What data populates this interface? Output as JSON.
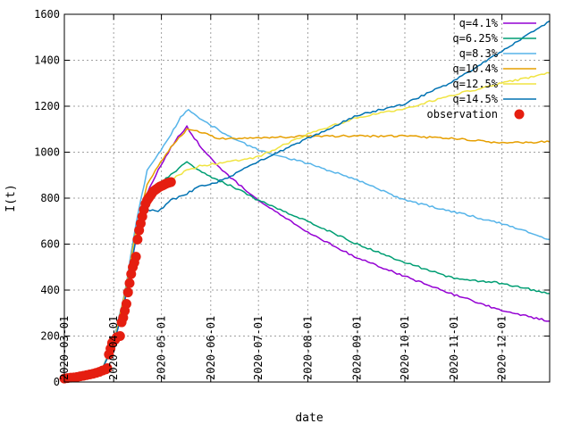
{
  "chart_data": {
    "type": "line",
    "xlabel": "date",
    "ylabel": "I(t)",
    "ylim": [
      0,
      1600
    ],
    "xlim": [
      "2020-03-01",
      "2020-12-31"
    ],
    "grid": true,
    "legend_position": "top-right",
    "y_ticks": [
      "0",
      "200",
      "400",
      "600",
      "800",
      "1000",
      "1200",
      "1400",
      "1600"
    ],
    "x_ticks": [
      "2020-03-01",
      "2020-04-01",
      "2020-05-01",
      "2020-06-01",
      "2020-07-01",
      "2020-08-01",
      "2020-09-01",
      "2020-10-01",
      "2020-11-01",
      "2020-12-01"
    ],
    "series": [
      {
        "name": "q=4.1%",
        "color": "#9400d3",
        "points": [
          [
            "2020-03-01",
            15
          ],
          [
            "2020-03-15",
            25
          ],
          [
            "2020-03-25",
            60
          ],
          [
            "2020-04-01",
            160
          ],
          [
            "2020-04-08",
            350
          ],
          [
            "2020-04-15",
            620
          ],
          [
            "2020-04-22",
            820
          ],
          [
            "2020-04-29",
            920
          ],
          [
            "2020-05-07",
            1020
          ],
          [
            "2020-05-13",
            1080
          ],
          [
            "2020-05-17",
            1110
          ],
          [
            "2020-05-25",
            1030
          ],
          [
            "2020-06-05",
            940
          ],
          [
            "2020-06-15",
            880
          ],
          [
            "2020-07-01",
            790
          ],
          [
            "2020-08-01",
            650
          ],
          [
            "2020-09-01",
            540
          ],
          [
            "2020-10-01",
            460
          ],
          [
            "2020-11-01",
            380
          ],
          [
            "2020-12-01",
            310
          ],
          [
            "2020-12-31",
            265
          ]
        ]
      },
      {
        "name": "q=6.25%",
        "color": "#009e73",
        "points": [
          [
            "2020-03-01",
            15
          ],
          [
            "2020-03-15",
            25
          ],
          [
            "2020-03-25",
            60
          ],
          [
            "2020-04-01",
            170
          ],
          [
            "2020-04-08",
            370
          ],
          [
            "2020-04-15",
            650
          ],
          [
            "2020-04-22",
            800
          ],
          [
            "2020-04-29",
            860
          ],
          [
            "2020-05-07",
            900
          ],
          [
            "2020-05-17",
            960
          ],
          [
            "2020-05-25",
            920
          ],
          [
            "2020-06-05",
            880
          ],
          [
            "2020-06-15",
            850
          ],
          [
            "2020-07-01",
            790
          ],
          [
            "2020-08-01",
            700
          ],
          [
            "2020-09-01",
            600
          ],
          [
            "2020-10-01",
            520
          ],
          [
            "2020-11-01",
            450
          ],
          [
            "2020-12-01",
            430
          ],
          [
            "2020-12-31",
            385
          ]
        ]
      },
      {
        "name": "q=8.3%",
        "color": "#56b4e9",
        "points": [
          [
            "2020-03-01",
            15
          ],
          [
            "2020-03-15",
            25
          ],
          [
            "2020-03-25",
            60
          ],
          [
            "2020-04-01",
            180
          ],
          [
            "2020-04-08",
            390
          ],
          [
            "2020-04-15",
            690
          ],
          [
            "2020-04-22",
            920
          ],
          [
            "2020-04-29",
            990
          ],
          [
            "2020-05-07",
            1080
          ],
          [
            "2020-05-13",
            1150
          ],
          [
            "2020-05-18",
            1185
          ],
          [
            "2020-05-25",
            1150
          ],
          [
            "2020-06-05",
            1100
          ],
          [
            "2020-06-15",
            1060
          ],
          [
            "2020-07-01",
            1010
          ],
          [
            "2020-08-01",
            950
          ],
          [
            "2020-09-01",
            880
          ],
          [
            "2020-10-01",
            790
          ],
          [
            "2020-11-01",
            740
          ],
          [
            "2020-12-01",
            690
          ],
          [
            "2020-12-31",
            620
          ]
        ]
      },
      {
        "name": "q=10.4%",
        "color": "#e69f00",
        "points": [
          [
            "2020-03-01",
            15
          ],
          [
            "2020-03-15",
            25
          ],
          [
            "2020-03-25",
            60
          ],
          [
            "2020-04-01",
            170
          ],
          [
            "2020-04-08",
            380
          ],
          [
            "2020-04-15",
            660
          ],
          [
            "2020-04-22",
            860
          ],
          [
            "2020-04-29",
            940
          ],
          [
            "2020-05-07",
            1020
          ],
          [
            "2020-05-17",
            1100
          ],
          [
            "2020-05-25",
            1090
          ],
          [
            "2020-06-05",
            1060
          ],
          [
            "2020-07-01",
            1060
          ],
          [
            "2020-08-01",
            1070
          ],
          [
            "2020-09-01",
            1070
          ],
          [
            "2020-10-01",
            1070
          ],
          [
            "2020-11-01",
            1060
          ],
          [
            "2020-12-01",
            1040
          ],
          [
            "2020-12-31",
            1045
          ]
        ]
      },
      {
        "name": "q=12.5%",
        "color": "#f0e442",
        "points": [
          [
            "2020-03-01",
            15
          ],
          [
            "2020-03-15",
            25
          ],
          [
            "2020-03-25",
            60
          ],
          [
            "2020-04-01",
            165
          ],
          [
            "2020-04-08",
            370
          ],
          [
            "2020-04-15",
            640
          ],
          [
            "2020-04-22",
            810
          ],
          [
            "2020-04-29",
            860
          ],
          [
            "2020-05-07",
            880
          ],
          [
            "2020-05-17",
            920
          ],
          [
            "2020-05-25",
            940
          ],
          [
            "2020-06-05",
            950
          ],
          [
            "2020-06-15",
            960
          ],
          [
            "2020-07-01",
            980
          ],
          [
            "2020-08-01",
            1080
          ],
          [
            "2020-09-01",
            1150
          ],
          [
            "2020-10-01",
            1190
          ],
          [
            "2020-11-01",
            1250
          ],
          [
            "2020-12-01",
            1300
          ],
          [
            "2020-12-31",
            1345
          ]
        ]
      },
      {
        "name": "q=14.5%",
        "color": "#0072b2",
        "points": [
          [
            "2020-03-01",
            15
          ],
          [
            "2020-03-15",
            25
          ],
          [
            "2020-03-25",
            60
          ],
          [
            "2020-04-01",
            160
          ],
          [
            "2020-04-08",
            360
          ],
          [
            "2020-04-15",
            620
          ],
          [
            "2020-04-22",
            750
          ],
          [
            "2020-04-29",
            740
          ],
          [
            "2020-05-07",
            790
          ],
          [
            "2020-05-17",
            820
          ],
          [
            "2020-05-25",
            850
          ],
          [
            "2020-06-05",
            870
          ],
          [
            "2020-06-15",
            900
          ],
          [
            "2020-07-01",
            960
          ],
          [
            "2020-08-01",
            1060
          ],
          [
            "2020-09-01",
            1160
          ],
          [
            "2020-10-01",
            1210
          ],
          [
            "2020-11-01",
            1310
          ],
          [
            "2020-12-01",
            1440
          ],
          [
            "2020-12-31",
            1570
          ]
        ]
      },
      {
        "name": "observation",
        "color": "#e51e10",
        "style": "points",
        "points": [
          [
            "2020-03-01",
            15
          ],
          [
            "2020-03-03",
            17
          ],
          [
            "2020-03-05",
            19
          ],
          [
            "2020-03-07",
            20
          ],
          [
            "2020-03-09",
            22
          ],
          [
            "2020-03-11",
            25
          ],
          [
            "2020-03-13",
            27
          ],
          [
            "2020-03-15",
            30
          ],
          [
            "2020-03-17",
            33
          ],
          [
            "2020-03-19",
            36
          ],
          [
            "2020-03-21",
            40
          ],
          [
            "2020-03-23",
            44
          ],
          [
            "2020-03-25",
            50
          ],
          [
            "2020-03-27",
            55
          ],
          [
            "2020-03-28",
            60
          ],
          [
            "2020-03-29",
            120
          ],
          [
            "2020-03-30",
            145
          ],
          [
            "2020-03-31",
            170
          ],
          [
            "2020-04-01",
            180
          ],
          [
            "2020-04-02",
            185
          ],
          [
            "2020-04-03",
            195
          ],
          [
            "2020-04-05",
            200
          ],
          [
            "2020-04-06",
            260
          ],
          [
            "2020-04-07",
            280
          ],
          [
            "2020-04-08",
            310
          ],
          [
            "2020-04-09",
            340
          ],
          [
            "2020-04-10",
            390
          ],
          [
            "2020-04-11",
            430
          ],
          [
            "2020-04-12",
            470
          ],
          [
            "2020-04-13",
            500
          ],
          [
            "2020-04-14",
            520
          ],
          [
            "2020-04-15",
            545
          ],
          [
            "2020-04-16",
            620
          ],
          [
            "2020-04-17",
            660
          ],
          [
            "2020-04-18",
            690
          ],
          [
            "2020-04-19",
            720
          ],
          [
            "2020-04-20",
            750
          ],
          [
            "2020-04-21",
            775
          ],
          [
            "2020-04-22",
            790
          ],
          [
            "2020-04-23",
            800
          ],
          [
            "2020-04-24",
            810
          ],
          [
            "2020-04-25",
            820
          ],
          [
            "2020-04-26",
            830
          ],
          [
            "2020-04-27",
            835
          ],
          [
            "2020-04-28",
            840
          ],
          [
            "2020-04-29",
            845
          ],
          [
            "2020-04-30",
            850
          ],
          [
            "2020-05-01",
            853
          ],
          [
            "2020-05-02",
            856
          ],
          [
            "2020-05-03",
            860
          ],
          [
            "2020-05-04",
            863
          ],
          [
            "2020-05-05",
            866
          ],
          [
            "2020-05-06",
            868
          ],
          [
            "2020-05-07",
            870
          ]
        ]
      }
    ]
  }
}
